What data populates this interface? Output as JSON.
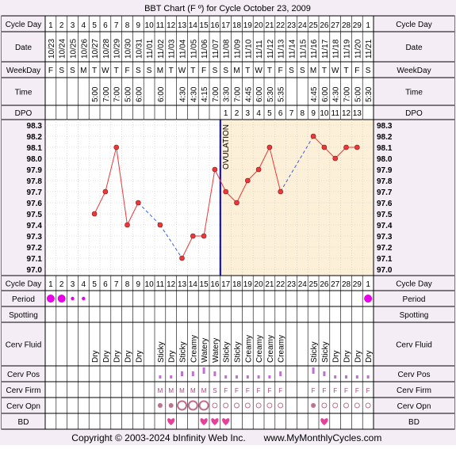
{
  "title": "BBT Chart (F º) for Cycle October 23, 2009",
  "row_labels": {
    "cycle_day": "Cycle Day",
    "date": "Date",
    "weekday": "WeekDay",
    "time": "Time",
    "dpo": "DPO",
    "period": "Period",
    "spotting": "Spotting",
    "cerv_fluid": "Cerv Fluid",
    "cerv_pos": "Cerv Pos",
    "cerv_firm": "Cerv Firm",
    "cerv_opn": "Cerv Opn",
    "bd": "BD"
  },
  "cycle_days": [
    "1",
    "2",
    "3",
    "4",
    "5",
    "6",
    "7",
    "8",
    "9",
    "10",
    "11",
    "12",
    "13",
    "14",
    "15",
    "16",
    "17",
    "18",
    "19",
    "20",
    "21",
    "22",
    "23",
    "24",
    "25",
    "26",
    "27",
    "28",
    "29",
    "1"
  ],
  "dates": [
    "10/23",
    "10/24",
    "10/25",
    "10/26",
    "10/27",
    "10/28",
    "10/29",
    "10/30",
    "10/31",
    "11/01",
    "11/02",
    "11/03",
    "11/04",
    "11/05",
    "11/06",
    "11/07",
    "11/08",
    "11/09",
    "11/10",
    "11/11",
    "11/12",
    "11/13",
    "11/14",
    "11/15",
    "11/16",
    "11/17",
    "11/18",
    "11/19",
    "11/20",
    "11/21"
  ],
  "weekdays": [
    "F",
    "S",
    "S",
    "M",
    "T",
    "W",
    "T",
    "F",
    "S",
    "S",
    "M",
    "T",
    "W",
    "T",
    "F",
    "S",
    "S",
    "M",
    "T",
    "W",
    "T",
    "F",
    "S",
    "S",
    "M",
    "T",
    "W",
    "T",
    "F",
    "S"
  ],
  "times": [
    "",
    "",
    "",
    "",
    "5:00",
    "7:00",
    "7:00",
    "5:00",
    "6:00",
    "",
    "6:00",
    "",
    "4:30",
    "4:30",
    "4:15",
    "7:00",
    "3:30",
    "7:00",
    "4:45",
    "6:00",
    "5:30",
    "5:35",
    "",
    "",
    "4:45",
    "6:00",
    "4:30",
    "7:00",
    "5:00",
    "5:30"
  ],
  "dpo": [
    "",
    "",
    "",
    "",
    "",
    "",
    "",
    "",
    "",
    "",
    "",
    "",
    "",
    "",
    "",
    "",
    "1",
    "2",
    "3",
    "4",
    "5",
    "6",
    "7",
    "8",
    "9",
    "10",
    "11",
    "12",
    "13",
    ""
  ],
  "period": [
    "heavy",
    "heavy",
    "light",
    "light",
    "",
    "",
    "",
    "",
    "",
    "",
    "",
    "",
    "",
    "",
    "",
    "",
    "",
    "",
    "",
    "",
    "",
    "",
    "",
    "",
    "",
    "",
    "",
    "",
    "",
    "heavy"
  ],
  "cerv_fluid": [
    "",
    "",
    "",
    "",
    "Dry",
    "Dry",
    "Dry",
    "Dry",
    "Dry",
    "",
    "Sticky",
    "Dry",
    "Sticky",
    "Creamy",
    "Watery",
    "Watery",
    "Sticky",
    "Sticky",
    "Creamy",
    "Creamy",
    "Creamy",
    "Creamy",
    "",
    "",
    "Sticky",
    "Sticky",
    "Dry",
    "Dry",
    "Dry",
    "Dry"
  ],
  "cerv_pos": [
    "",
    "",
    "",
    "",
    "",
    "",
    "",
    "",
    "",
    "",
    "low",
    "low",
    "med",
    "med",
    "high",
    "med",
    "low",
    "low",
    "low",
    "low",
    "low",
    "med",
    "",
    "",
    "high",
    "med",
    "low",
    "low",
    "low",
    "low"
  ],
  "cerv_firm": [
    "",
    "",
    "",
    "",
    "",
    "",
    "",
    "",
    "",
    "",
    "M",
    "M",
    "M",
    "M",
    "M",
    "S",
    "F",
    "F",
    "F",
    "F",
    "F",
    "F",
    "",
    "",
    "F",
    "F",
    "F",
    "F",
    "F",
    "F"
  ],
  "cerv_opn": [
    "",
    "",
    "",
    "",
    "",
    "",
    "",
    "",
    "",
    "",
    "med",
    "med",
    "large",
    "large",
    "large",
    "small",
    "small",
    "small",
    "small",
    "small",
    "small",
    "small",
    "",
    "",
    "med",
    "small",
    "small",
    "small",
    "small",
    "small"
  ],
  "bd": [
    "",
    "",
    "",
    "",
    "",
    "",
    "",
    "",
    "",
    "",
    "",
    "heart",
    "",
    "",
    "heart",
    "heart",
    "heart",
    "",
    "",
    "",
    "",
    "",
    "",
    "",
    "",
    "heart",
    "",
    "",
    "",
    ""
  ],
  "ovulation_label": "OVULATION",
  "copyright": "Copyright © 2003-2024 bInfinity Web Inc.",
  "site": "www.MyMonthlyCycles.com",
  "colors": {
    "background": "#f4edf6",
    "grid_bg": "#ffffff",
    "luteal_bg": "#fdf0d9",
    "ovulation_line": "#0000cc",
    "temp_line": "#e83a3a",
    "temp_marker": "#e83a3a",
    "gap_line": "#3a5fdc",
    "period": "#e800e8",
    "cerv_pos": "#c070d0",
    "cerv_opn": "#c07088",
    "heart": "#e8409a"
  },
  "chart_data": {
    "type": "line",
    "x": [
      1,
      2,
      3,
      4,
      5,
      6,
      7,
      8,
      9,
      10,
      11,
      12,
      13,
      14,
      15,
      16,
      17,
      18,
      19,
      20,
      21,
      22,
      23,
      24,
      25,
      26,
      27,
      28,
      29,
      30
    ],
    "values": [
      null,
      null,
      null,
      null,
      97.5,
      97.7,
      98.1,
      97.4,
      97.6,
      null,
      97.4,
      null,
      97.1,
      97.3,
      97.3,
      97.9,
      97.7,
      97.6,
      97.8,
      97.9,
      98.1,
      97.7,
      null,
      null,
      98.2,
      98.1,
      98.0,
      98.1,
      98.1,
      null
    ],
    "ylim": [
      97.0,
      98.3
    ],
    "yticks": [
      "98.3",
      "98.2",
      "98.1",
      "98.0",
      "97.9",
      "97.8",
      "97.7",
      "97.6",
      "97.5",
      "97.4",
      "97.3",
      "97.2",
      "97.1",
      "97.0"
    ],
    "ovulation_day": 16,
    "grid": true
  }
}
